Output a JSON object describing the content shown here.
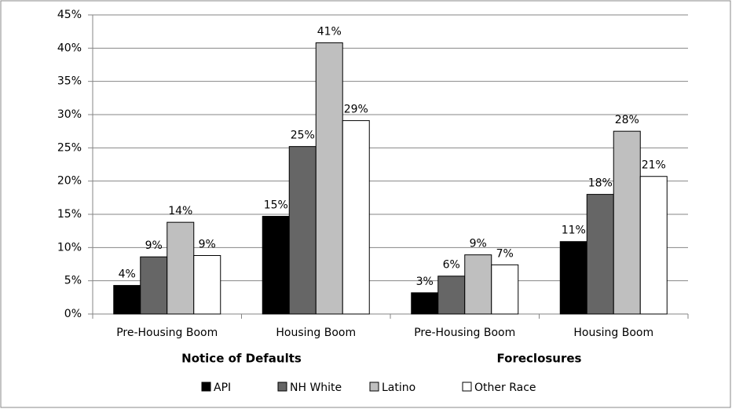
{
  "chart_data": {
    "type": "bar",
    "categories": [
      "Pre-Housing  Boom",
      "Housing Boom",
      "Pre-Housing  Boom",
      "Housing Boom"
    ],
    "groups": [
      "Notice of Defaults",
      "Foreclosures"
    ],
    "series": [
      {
        "name": "API",
        "color": "#000000",
        "values": [
          4.3,
          14.7,
          3.2,
          10.9
        ],
        "value_labels": [
          "4%",
          "15%",
          "3%",
          "11%"
        ]
      },
      {
        "name": "NH White",
        "color": "#666666",
        "values": [
          8.6,
          25.2,
          5.7,
          18.0
        ],
        "value_labels": [
          "9%",
          "25%",
          "6%",
          "18%"
        ]
      },
      {
        "name": "Latino",
        "color": "#bfbfbf",
        "values": [
          13.8,
          40.8,
          8.9,
          27.5
        ],
        "value_labels": [
          "14%",
          "41%",
          "9%",
          "28%"
        ]
      },
      {
        "name": "Other Race",
        "color": "#ffffff",
        "values": [
          8.8,
          29.1,
          7.4,
          20.7
        ],
        "value_labels": [
          "9%",
          "29%",
          "7%",
          "21%"
        ]
      }
    ],
    "ylim": [
      0,
      45
    ],
    "yticks": [
      {
        "value": 0,
        "label": "0%"
      },
      {
        "value": 5,
        "label": "5%"
      },
      {
        "value": 10,
        "label": "10%"
      },
      {
        "value": 15,
        "label": "15%"
      },
      {
        "value": 20,
        "label": "20%"
      },
      {
        "value": 25,
        "label": "25%"
      },
      {
        "value": 30,
        "label": "30%"
      },
      {
        "value": 35,
        "label": "35%"
      },
      {
        "value": 40,
        "label": "40%"
      },
      {
        "value": 45,
        "label": "45%"
      }
    ],
    "grid": true,
    "legend": "bottom"
  }
}
